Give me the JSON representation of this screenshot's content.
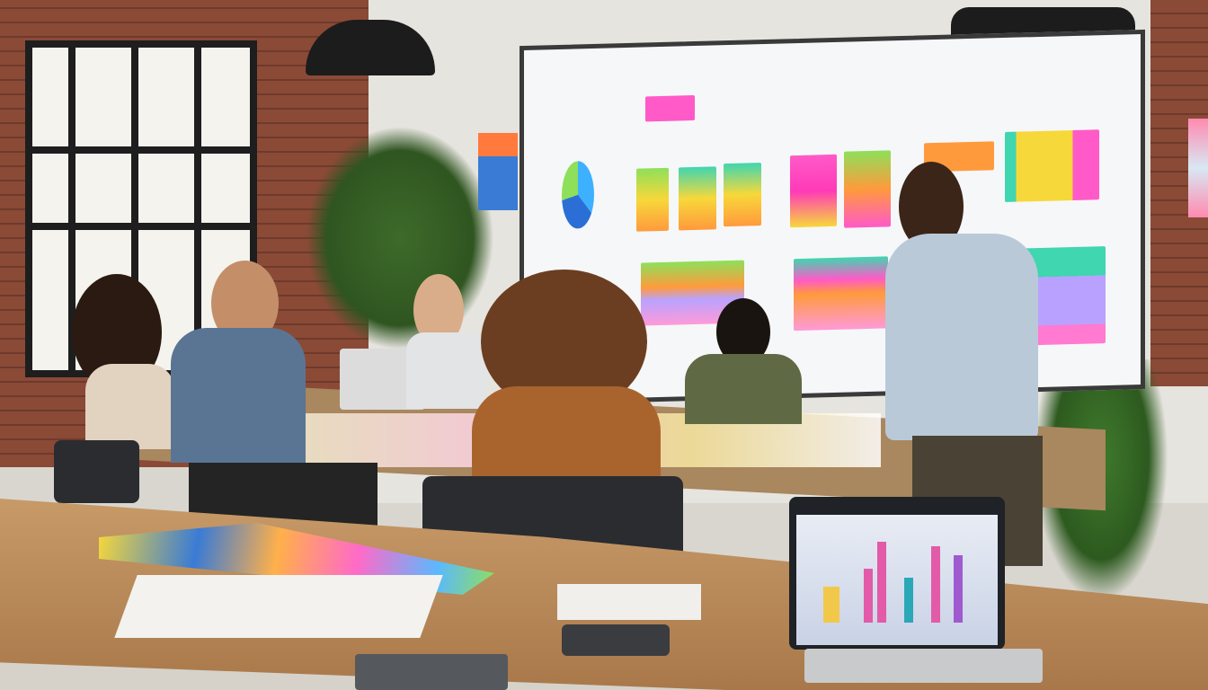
{
  "scene": {
    "description_colors": {
      "wall_left": "#7d4533",
      "wall_back": "#e6e4de",
      "whiteboard": "#f6f7f8",
      "table": "#b98a5c",
      "floor": "#d2cec6"
    },
    "sticky_note_colors": [
      "#ff5ac8",
      "#f7d83a",
      "#3fd6b0",
      "#ff9a3c",
      "#5bb8ff",
      "#b9a2ff",
      "#8ee05a"
    ]
  }
}
